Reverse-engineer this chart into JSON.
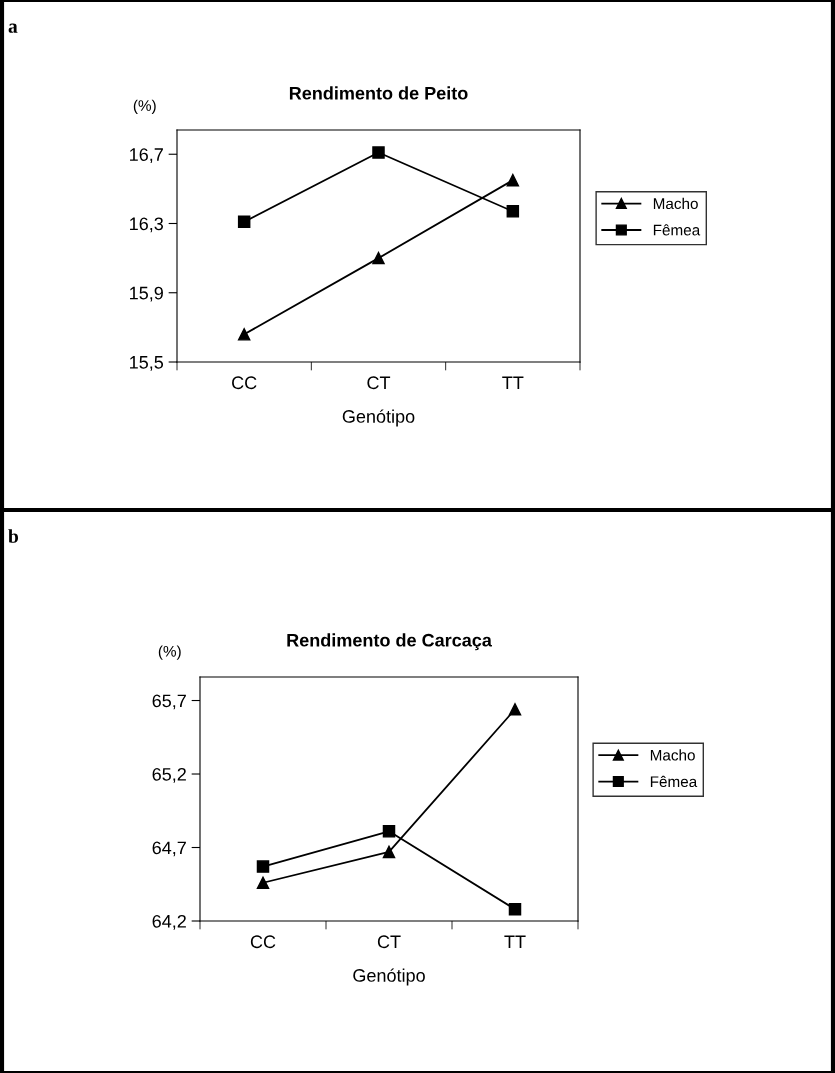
{
  "chart_data": [
    {
      "type": "line",
      "title": "Rendimento de Peito",
      "ylabel": "(%)",
      "xlabel": "Genótipo",
      "annotations": [
        "a"
      ],
      "categories": [
        "CC",
        "CT",
        "TT"
      ],
      "series": [
        {
          "name": "Macho",
          "color": "#000000",
          "marker": "triangle",
          "values": [
            15.66,
            16.1,
            16.55
          ]
        },
        {
          "name": "Fêmea",
          "color": "#000000",
          "marker": "square",
          "values": [
            16.31,
            16.71,
            16.37
          ]
        }
      ],
      "ylim": [
        15.5,
        16.84
      ],
      "yticks": [
        {
          "value": 15.5,
          "label": "15,5"
        },
        {
          "value": 15.9,
          "label": "15,9"
        },
        {
          "value": 16.3,
          "label": "16,3"
        },
        {
          "value": 16.7,
          "label": "16,7"
        }
      ],
      "grid": false,
      "legend": "right",
      "line_style": "solid"
    },
    {
      "type": "line",
      "title": "Rendimento de Carcaça",
      "ylabel": "(%)",
      "xlabel": "Genótipo",
      "annotations": [
        "b"
      ],
      "categories": [
        "CC",
        "CT",
        "TT"
      ],
      "series": [
        {
          "name": "Macho",
          "color": "#000000",
          "marker": "triangle",
          "values": [
            64.46,
            64.67,
            65.64
          ]
        },
        {
          "name": "Fêmea",
          "color": "#000000",
          "marker": "square",
          "values": [
            64.57,
            64.81,
            64.28
          ]
        }
      ],
      "ylim": [
        64.2,
        65.86
      ],
      "yticks": [
        {
          "value": 64.2,
          "label": "64,2"
        },
        {
          "value": 64.7,
          "label": "64,7"
        },
        {
          "value": 65.2,
          "label": "65,2"
        },
        {
          "value": 65.7,
          "label": "65,7"
        }
      ],
      "grid": false,
      "legend": "right",
      "line_style": "solid"
    }
  ]
}
